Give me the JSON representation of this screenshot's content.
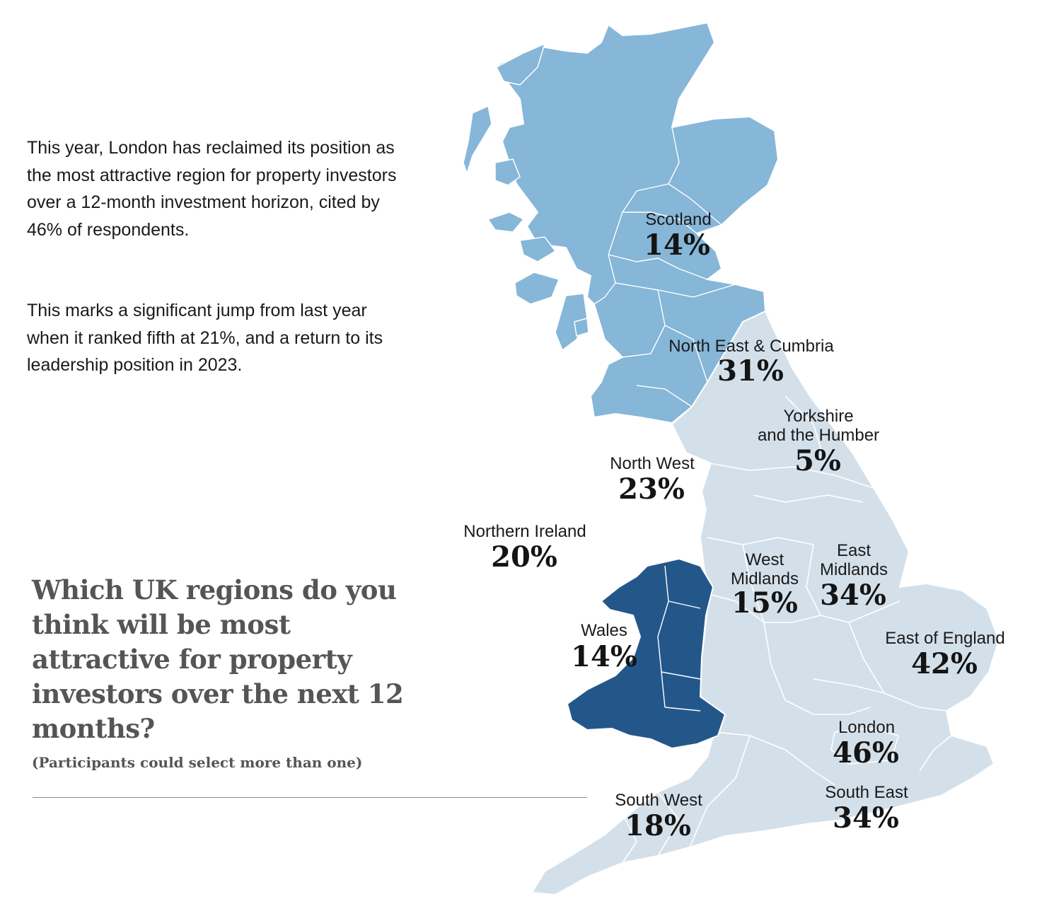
{
  "intro": {
    "paragraph_1": "This year, London has reclaimed its position as the most attractive region for property investors over a 12-month investment horizon, cited by 46% of respondents.",
    "paragraph_2": "This marks a significant jump from last year when it ranked fifth at 21%, and a return to its leadership position in 2023."
  },
  "question": {
    "title": "Which UK regions do you think will be most attractive for property investors over the next 12 months?",
    "note": "(Participants could select more than one)"
  },
  "colors": {
    "scotland_fill": "#86b6d8",
    "wales_fill": "#23578a",
    "england_fill": "#d3e0ea",
    "border": "#ffffff"
  },
  "regions": {
    "scotland": {
      "label": "Scotland",
      "value": "14%"
    },
    "north_east_cumbria": {
      "label": "North East & Cumbria",
      "value": "31%"
    },
    "yorkshire": {
      "label_line1": "Yorkshire",
      "label_line2": "and the Humber",
      "value": "5%"
    },
    "north_west": {
      "label": "North West",
      "value": "23%"
    },
    "northern_ireland": {
      "label": "Northern Ireland",
      "value": "20%"
    },
    "west_midlands": {
      "label_line1": "West",
      "label_line2": "Midlands",
      "value": "15%"
    },
    "east_midlands": {
      "label_line1": "East",
      "label_line2": "Midlands",
      "value": "34%"
    },
    "wales": {
      "label": "Wales",
      "value": "14%"
    },
    "east_of_england": {
      "label": "East of England",
      "value": "42%"
    },
    "london": {
      "label": "London",
      "value": "46%"
    },
    "south_east": {
      "label": "South East",
      "value": "34%"
    },
    "south_west": {
      "label": "South West",
      "value": "18%"
    }
  }
}
